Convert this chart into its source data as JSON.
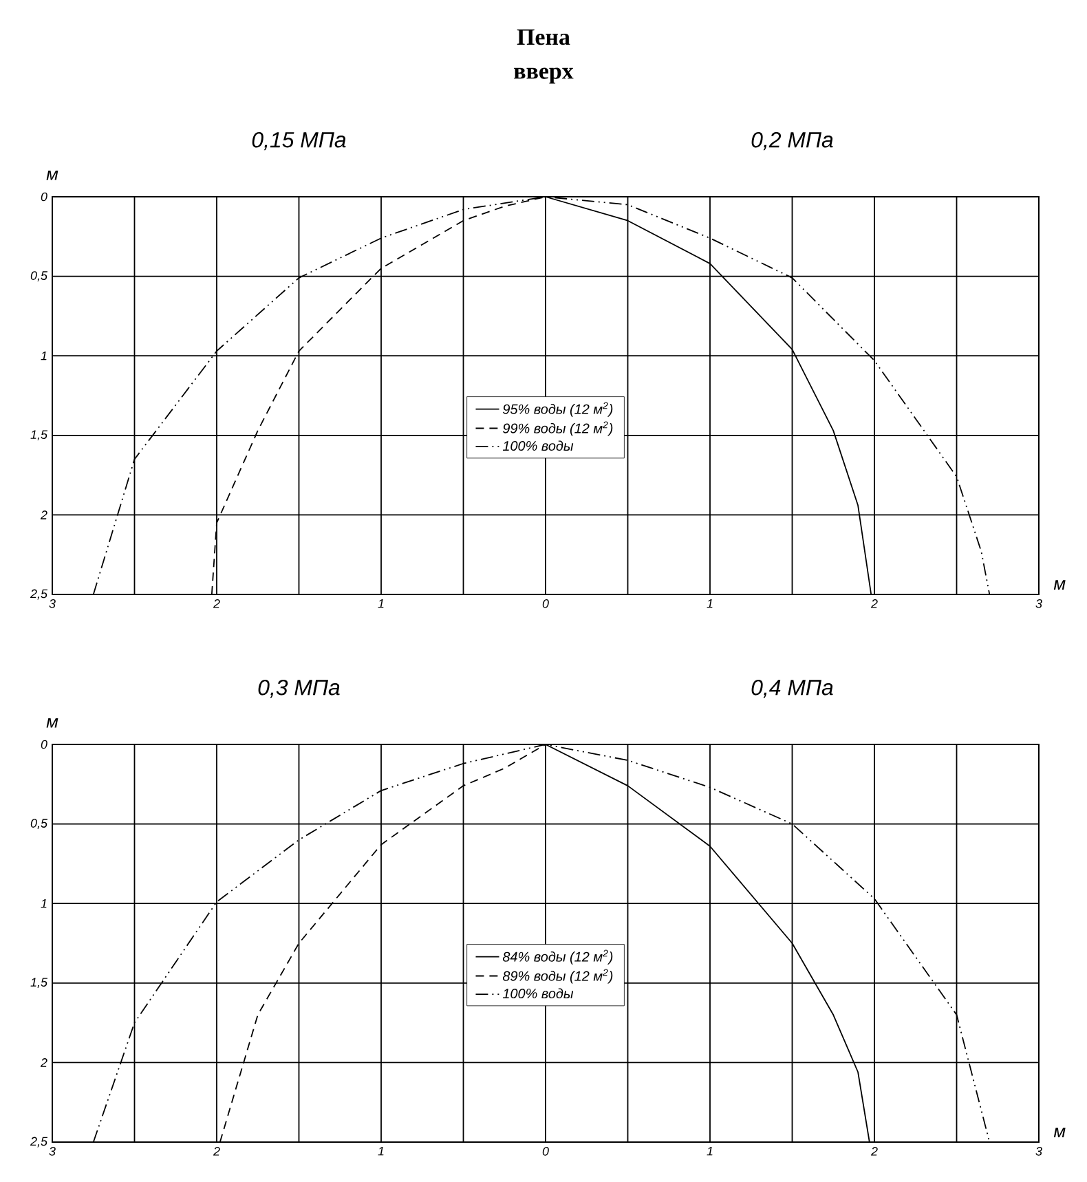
{
  "chart_data": [
    {
      "type": "line",
      "title": "Пена",
      "subtitle": "вверх",
      "xlabel": "м",
      "ylabel": "м",
      "annotations": [
        "0,15 МПа",
        "0,2 МПа"
      ],
      "xlim": [
        -3,
        3
      ],
      "ylim": [
        2.5,
        0
      ],
      "xticks": [
        {
          "value": -3,
          "label": "3"
        },
        {
          "value": -2.5,
          "label": null
        },
        {
          "value": -2,
          "label": "2"
        },
        {
          "value": -1.5,
          "label": null
        },
        {
          "value": -1,
          "label": "1"
        },
        {
          "value": -0.5,
          "label": null
        },
        0,
        {
          "value": 0.5,
          "label": null
        },
        1,
        {
          "value": 1.5,
          "label": null
        },
        2,
        {
          "value": 2.5,
          "label": null
        },
        3
      ],
      "yticks": [
        0,
        {
          "value": 0.5,
          "label": "0,5"
        },
        1,
        {
          "value": 1.5,
          "label": "1,5"
        },
        2,
        {
          "value": 2.5,
          "label": "2,5"
        }
      ],
      "grid": true,
      "legend": "center",
      "series": [
        {
          "name": "95% воды (12 м$^{2}$)",
          "color": "#000000",
          "line_style": "solid",
          "x": [
            0,
            0.5,
            1,
            1.5,
            1.75,
            1.9,
            1.98
          ],
          "values": [
            0,
            0.15,
            0.42,
            0.96,
            1.47,
            1.94,
            2.5
          ]
        },
        {
          "name": "99% воды (12 м$^{2}$)",
          "color": "#000000",
          "line_style": "dashed",
          "x": [
            -2.03,
            -2,
            -1.75,
            -1.5,
            -1,
            -0.5,
            -0.25,
            0
          ],
          "values": [
            2.5,
            2.05,
            1.47,
            0.97,
            0.45,
            0.15,
            0.06,
            0
          ]
        },
        {
          "name": "100% воды",
          "color": "#000000",
          "line_style": "dashdotdotted",
          "x": [
            -2.75,
            -2.5,
            -2,
            -1.5,
            -1,
            -0.5,
            0,
            0.5,
            1,
            1.5,
            2,
            2.5,
            2.65,
            2.7
          ],
          "values": [
            2.5,
            1.65,
            0.97,
            0.51,
            0.26,
            0.08,
            0,
            0.05,
            0.26,
            0.51,
            1.03,
            1.76,
            2.23,
            2.5
          ]
        }
      ]
    },
    {
      "type": "line",
      "xlabel": "м",
      "ylabel": "м",
      "annotations": [
        "0,3 МПа",
        "0,4 МПа"
      ],
      "xlim": [
        -3,
        3
      ],
      "ylim": [
        2.5,
        0
      ],
      "xticks": [
        {
          "value": -3,
          "label": "3"
        },
        {
          "value": -2.5,
          "label": null
        },
        {
          "value": -2,
          "label": "2"
        },
        {
          "value": -1.5,
          "label": null
        },
        {
          "value": -1,
          "label": "1"
        },
        {
          "value": -0.5,
          "label": null
        },
        0,
        {
          "value": 0.5,
          "label": null
        },
        1,
        {
          "value": 1.5,
          "label": null
        },
        2,
        {
          "value": 2.5,
          "label": null
        },
        3
      ],
      "yticks": [
        0,
        {
          "value": 0.5,
          "label": "0,5"
        },
        1,
        {
          "value": 1.5,
          "label": "1,5"
        },
        2,
        {
          "value": 2.5,
          "label": "2,5"
        }
      ],
      "grid": true,
      "legend": "center",
      "series": [
        {
          "name": "84% воды (12 м$^{2}$)",
          "color": "#000000",
          "line_style": "solid",
          "x": [
            0,
            0.5,
            1,
            1.5,
            1.75,
            1.9,
            1.97
          ],
          "values": [
            0,
            0.26,
            0.64,
            1.25,
            1.7,
            2.06,
            2.5
          ]
        },
        {
          "name": "89% воды (12 м$^{2}$)",
          "color": "#000000",
          "line_style": "dashed",
          "x": [
            -1.98,
            -1.75,
            -1.5,
            -1,
            -0.5,
            -0.25,
            0
          ],
          "values": [
            2.5,
            1.7,
            1.25,
            0.63,
            0.26,
            0.15,
            0
          ]
        },
        {
          "name": "100% воды",
          "color": "#000000",
          "line_style": "dashdotdotted",
          "x": [
            -2.75,
            -2.5,
            -2,
            -1.5,
            -1,
            -0.5,
            0,
            0.5,
            1,
            1.5,
            2,
            2.5,
            2.7
          ],
          "values": [
            2.5,
            1.75,
            0.99,
            0.6,
            0.29,
            0.12,
            0,
            0.1,
            0.27,
            0.5,
            0.97,
            1.7,
            2.5
          ]
        }
      ]
    }
  ]
}
